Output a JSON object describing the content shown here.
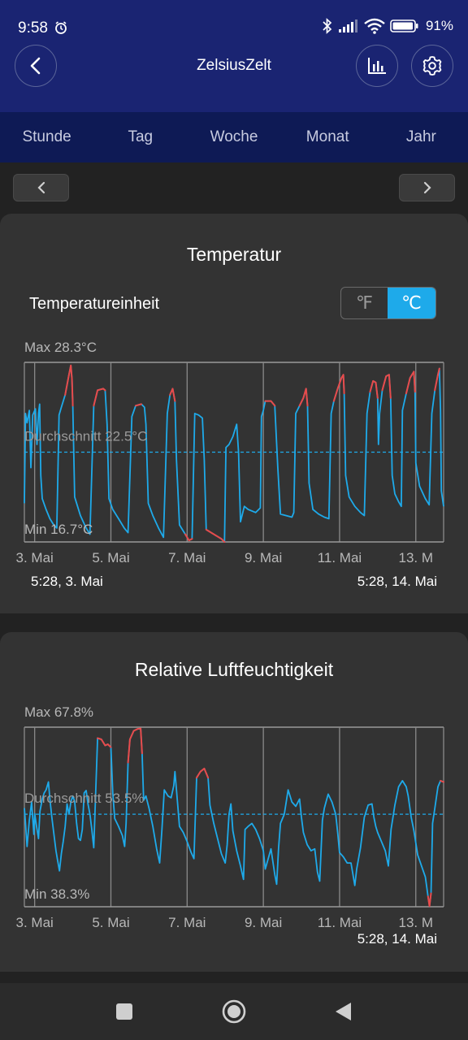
{
  "status_bar": {
    "time": "9:58",
    "battery": "91%"
  },
  "header": {
    "title": "ZelsiusZelt"
  },
  "tabs": [
    {
      "label": "Stunde"
    },
    {
      "label": "Tag"
    },
    {
      "label": "Woche"
    },
    {
      "label": "Monat"
    },
    {
      "label": "Jahr"
    }
  ],
  "temperature": {
    "title": "Temperatur",
    "unit_label": "Temperatureinheit",
    "unit_f": "℉",
    "unit_c": "℃",
    "range_start": "5:28,  3. Mai",
    "range_end": "5:28,  14. Mai"
  },
  "humidity": {
    "title": "Relative Luftfeuchtigkeit",
    "range_end": "5:28,  14. Mai"
  },
  "colors": {
    "header": "#1a2472",
    "tabs": "#0e1a55",
    "line": "#1eaaea",
    "high": "#e84a4a",
    "card": "#333333"
  },
  "chart_data": [
    {
      "type": "line",
      "name": "temperature",
      "max_label": "Max 28.3°C",
      "avg_label": "Durchschnitt 22.5°C",
      "min_label": "Min 16.7°C",
      "max": 28.3,
      "avg": 22.5,
      "min": 16.7,
      "threshold": 25.5,
      "x_tick_labels": [
        "3. Mai",
        "5. Mai",
        "7. Mai",
        "9. Mai",
        "11. Mai",
        "13. M"
      ],
      "x_start_day": 3.23,
      "x_end_day": 14.23,
      "points": [
        [
          3.23,
          19.2
        ],
        [
          3.26,
          25.0
        ],
        [
          3.3,
          24.4
        ],
        [
          3.36,
          25.2
        ],
        [
          3.4,
          21.5
        ],
        [
          3.45,
          24.9
        ],
        [
          3.52,
          25.3
        ],
        [
          3.56,
          23.0
        ],
        [
          3.6,
          25.0
        ],
        [
          3.63,
          25.6
        ],
        [
          3.66,
          21.0
        ],
        [
          3.7,
          19.5
        ],
        [
          3.8,
          18.8
        ],
        [
          3.9,
          18.2
        ],
        [
          4.0,
          17.8
        ],
        [
          4.08,
          17.6
        ],
        [
          4.14,
          24.9
        ],
        [
          4.2,
          25.4
        ],
        [
          4.3,
          26.2
        ],
        [
          4.4,
          27.5
        ],
        [
          4.45,
          28.1
        ],
        [
          4.48,
          27.2
        ],
        [
          4.5,
          25.5
        ],
        [
          4.55,
          19.6
        ],
        [
          4.7,
          18.4
        ],
        [
          4.85,
          17.6
        ],
        [
          4.95,
          17.2
        ],
        [
          5.05,
          25.5
        ],
        [
          5.15,
          26.5
        ],
        [
          5.3,
          26.6
        ],
        [
          5.35,
          26.5
        ],
        [
          5.4,
          24.3
        ],
        [
          5.45,
          19.5
        ],
        [
          5.55,
          18.8
        ],
        [
          5.7,
          18.2
        ],
        [
          5.85,
          17.6
        ],
        [
          5.95,
          17.3
        ],
        [
          6.05,
          24.8
        ],
        [
          6.15,
          25.5
        ],
        [
          6.3,
          25.6
        ],
        [
          6.38,
          25.4
        ],
        [
          6.42,
          24.3
        ],
        [
          6.48,
          19.2
        ],
        [
          6.6,
          18.4
        ],
        [
          6.75,
          17.6
        ],
        [
          6.88,
          17.0
        ],
        [
          6.98,
          25.0
        ],
        [
          7.05,
          26.2
        ],
        [
          7.12,
          26.6
        ],
        [
          7.18,
          25.8
        ],
        [
          7.22,
          22.0
        ],
        [
          7.3,
          17.8
        ],
        [
          7.45,
          17.2
        ],
        [
          7.55,
          16.8
        ],
        [
          7.63,
          16.9
        ],
        [
          7.7,
          25.0
        ],
        [
          7.8,
          24.9
        ],
        [
          7.9,
          24.7
        ],
        [
          7.95,
          22.0
        ],
        [
          8.0,
          17.5
        ],
        [
          8.2,
          17.2
        ],
        [
          8.4,
          16.9
        ],
        [
          8.48,
          16.7
        ],
        [
          8.52,
          22.8
        ],
        [
          8.6,
          23.0
        ],
        [
          8.7,
          23.5
        ],
        [
          8.8,
          24.3
        ],
        [
          8.85,
          22.5
        ],
        [
          8.9,
          18.0
        ],
        [
          9.0,
          19.0
        ],
        [
          9.1,
          18.8
        ],
        [
          9.3,
          18.6
        ],
        [
          9.42,
          18.9
        ],
        [
          9.45,
          24.8
        ],
        [
          9.5,
          25.2
        ],
        [
          9.55,
          25.8
        ],
        [
          9.7,
          25.8
        ],
        [
          9.8,
          25.5
        ],
        [
          9.88,
          21.5
        ],
        [
          9.95,
          18.5
        ],
        [
          10.1,
          18.4
        ],
        [
          10.25,
          18.3
        ],
        [
          10.3,
          18.6
        ],
        [
          10.35,
          25.0
        ],
        [
          10.45,
          25.5
        ],
        [
          10.55,
          26.0
        ],
        [
          10.62,
          26.6
        ],
        [
          10.66,
          25.5
        ],
        [
          10.7,
          20.5
        ],
        [
          10.8,
          18.8
        ],
        [
          10.95,
          18.5
        ],
        [
          11.1,
          18.3
        ],
        [
          11.22,
          18.2
        ],
        [
          11.28,
          25.0
        ],
        [
          11.35,
          25.8
        ],
        [
          11.45,
          26.6
        ],
        [
          11.55,
          27.3
        ],
        [
          11.6,
          27.5
        ],
        [
          11.62,
          26.3
        ],
        [
          11.66,
          21.0
        ],
        [
          11.75,
          19.6
        ],
        [
          11.9,
          19.0
        ],
        [
          12.05,
          18.6
        ],
        [
          12.15,
          18.4
        ],
        [
          12.22,
          25.0
        ],
        [
          12.3,
          26.4
        ],
        [
          12.38,
          27.1
        ],
        [
          12.45,
          27.0
        ],
        [
          12.5,
          26.0
        ],
        [
          12.52,
          23.0
        ],
        [
          12.55,
          25.0
        ],
        [
          12.62,
          26.5
        ],
        [
          12.72,
          27.4
        ],
        [
          12.8,
          27.5
        ],
        [
          12.84,
          26.0
        ],
        [
          12.88,
          21.0
        ],
        [
          12.95,
          19.8
        ],
        [
          13.05,
          19.3
        ],
        [
          13.12,
          19.0
        ],
        [
          13.15,
          25.2
        ],
        [
          13.25,
          26.3
        ],
        [
          13.35,
          27.3
        ],
        [
          13.45,
          27.7
        ],
        [
          13.48,
          26.4
        ],
        [
          13.5,
          21.8
        ],
        [
          13.6,
          20.3
        ],
        [
          13.75,
          19.5
        ],
        [
          13.85,
          19.1
        ],
        [
          13.92,
          25.0
        ],
        [
          14.0,
          26.5
        ],
        [
          14.08,
          27.5
        ],
        [
          14.12,
          27.9
        ],
        [
          14.15,
          25.2
        ],
        [
          14.17,
          20.0
        ],
        [
          14.2,
          19.5
        ],
        [
          14.23,
          19.0
        ]
      ]
    },
    {
      "type": "line",
      "name": "humidity",
      "max_label": "Max 67.8%",
      "avg_label": "Durchschnitt 53.5%",
      "min_label": "Min 38.3%",
      "max": 67.8,
      "avg": 53.5,
      "min": 38.3,
      "threshold": 58.5,
      "x_tick_labels": [
        "3. Mai",
        "5. Mai",
        "7. Mai",
        "9. Mai",
        "11. Mai",
        "13. M"
      ],
      "x_start_day": 3.23,
      "x_end_day": 14.23,
      "points": [
        [
          3.23,
          54.5
        ],
        [
          3.26,
          52.0
        ],
        [
          3.3,
          48.2
        ],
        [
          3.36,
          52.5
        ],
        [
          3.42,
          55.5
        ],
        [
          3.48,
          50.2
        ],
        [
          3.5,
          53.6
        ],
        [
          3.55,
          51.5
        ],
        [
          3.6,
          49.5
        ],
        [
          3.64,
          54.0
        ],
        [
          3.7,
          56.0
        ],
        [
          3.75,
          57.0
        ],
        [
          3.8,
          57.5
        ],
        [
          3.86,
          58.8
        ],
        [
          3.9,
          56.0
        ],
        [
          3.95,
          53.0
        ],
        [
          4.0,
          50.5
        ],
        [
          4.06,
          47.5
        ],
        [
          4.1,
          46.0
        ],
        [
          4.15,
          44.2
        ],
        [
          4.2,
          47.0
        ],
        [
          4.25,
          49.0
        ],
        [
          4.3,
          51.5
        ],
        [
          4.35,
          55.2
        ],
        [
          4.4,
          53.5
        ],
        [
          4.45,
          55.5
        ],
        [
          4.5,
          56.5
        ],
        [
          4.55,
          55.6
        ],
        [
          4.6,
          52.0
        ],
        [
          4.65,
          49.5
        ],
        [
          4.7,
          49.2
        ],
        [
          4.75,
          51.0
        ],
        [
          4.8,
          57.0
        ],
        [
          4.85,
          57.4
        ],
        [
          4.9,
          55.2
        ],
        [
          4.95,
          53.5
        ],
        [
          5.0,
          51.0
        ],
        [
          5.05,
          48.0
        ],
        [
          5.15,
          66.0
        ],
        [
          5.25,
          65.8
        ],
        [
          5.35,
          64.8
        ],
        [
          5.42,
          65.0
        ],
        [
          5.5,
          64.5
        ],
        [
          5.55,
          57.0
        ],
        [
          5.6,
          52.8
        ],
        [
          5.7,
          51.5
        ],
        [
          5.8,
          50.0
        ],
        [
          5.86,
          48.2
        ],
        [
          5.9,
          52.0
        ],
        [
          5.95,
          62.0
        ],
        [
          6.0,
          65.8
        ],
        [
          6.1,
          67.2
        ],
        [
          6.2,
          67.5
        ],
        [
          6.28,
          67.6
        ],
        [
          6.32,
          63.5
        ],
        [
          6.36,
          55.8
        ],
        [
          6.42,
          56.5
        ],
        [
          6.5,
          54.5
        ],
        [
          6.6,
          51.5
        ],
        [
          6.7,
          47.8
        ],
        [
          6.78,
          45.5
        ],
        [
          6.84,
          51.0
        ],
        [
          6.9,
          57.5
        ],
        [
          7.0,
          56.5
        ],
        [
          7.08,
          56.2
        ],
        [
          7.15,
          58.2
        ],
        [
          7.18,
          60.5
        ],
        [
          7.22,
          57.5
        ],
        [
          7.3,
          51.5
        ],
        [
          7.4,
          50.5
        ],
        [
          7.5,
          49.0
        ],
        [
          7.6,
          47.3
        ],
        [
          7.68,
          46.2
        ],
        [
          7.75,
          59.5
        ],
        [
          7.85,
          60.5
        ],
        [
          7.95,
          61.0
        ],
        [
          8.05,
          59.5
        ],
        [
          8.1,
          55.0
        ],
        [
          8.2,
          52.0
        ],
        [
          8.3,
          49.5
        ],
        [
          8.4,
          47.0
        ],
        [
          8.5,
          45.5
        ],
        [
          8.55,
          48.5
        ],
        [
          8.6,
          53.5
        ],
        [
          8.65,
          55.2
        ],
        [
          8.7,
          50.8
        ],
        [
          8.8,
          47.5
        ],
        [
          8.9,
          45.0
        ],
        [
          8.98,
          42.8
        ],
        [
          9.02,
          51.0
        ],
        [
          9.1,
          51.5
        ],
        [
          9.2,
          52.0
        ],
        [
          9.3,
          51.0
        ],
        [
          9.4,
          49.5
        ],
        [
          9.45,
          48.5
        ],
        [
          9.5,
          47.5
        ],
        [
          9.55,
          44.5
        ],
        [
          9.62,
          46.0
        ],
        [
          9.7,
          47.8
        ],
        [
          9.8,
          43.6
        ],
        [
          9.85,
          42.0
        ],
        [
          9.9,
          48.0
        ],
        [
          9.95,
          52.0
        ],
        [
          10.05,
          53.5
        ],
        [
          10.15,
          57.5
        ],
        [
          10.25,
          55.5
        ],
        [
          10.35,
          54.8
        ],
        [
          10.45,
          56.0
        ],
        [
          10.5,
          53.0
        ],
        [
          10.55,
          50.5
        ],
        [
          10.65,
          48.5
        ],
        [
          10.75,
          47.5
        ],
        [
          10.85,
          47.8
        ],
        [
          10.92,
          44.0
        ],
        [
          10.98,
          42.5
        ],
        [
          11.05,
          52.5
        ],
        [
          11.1,
          54.5
        ],
        [
          11.2,
          56.8
        ],
        [
          11.3,
          55.5
        ],
        [
          11.4,
          53.5
        ],
        [
          11.45,
          50.5
        ],
        [
          11.5,
          47.2
        ],
        [
          11.6,
          46.5
        ],
        [
          11.7,
          45.5
        ],
        [
          11.8,
          45.5
        ],
        [
          11.9,
          41.8
        ],
        [
          11.95,
          44.5
        ],
        [
          12.05,
          48.0
        ],
        [
          12.15,
          53.0
        ],
        [
          12.25,
          55.0
        ],
        [
          12.35,
          55.2
        ],
        [
          12.4,
          53.0
        ],
        [
          12.45,
          51.5
        ],
        [
          12.5,
          50.5
        ],
        [
          12.6,
          49.0
        ],
        [
          12.7,
          47.5
        ],
        [
          12.78,
          45.0
        ],
        [
          12.85,
          51.0
        ],
        [
          12.95,
          55.0
        ],
        [
          13.05,
          58.0
        ],
        [
          13.15,
          59.0
        ],
        [
          13.25,
          58.0
        ],
        [
          13.3,
          56.5
        ],
        [
          13.38,
          53.0
        ],
        [
          13.45,
          50.8
        ],
        [
          13.55,
          46.8
        ],
        [
          13.65,
          45.0
        ],
        [
          13.75,
          43.2
        ],
        [
          13.82,
          40.0
        ],
        [
          13.86,
          38.4
        ],
        [
          13.9,
          40.5
        ],
        [
          13.94,
          52.0
        ],
        [
          14.0,
          54.5
        ],
        [
          14.08,
          58.0
        ],
        [
          14.15,
          59.0
        ],
        [
          14.23,
          58.8
        ]
      ]
    }
  ]
}
